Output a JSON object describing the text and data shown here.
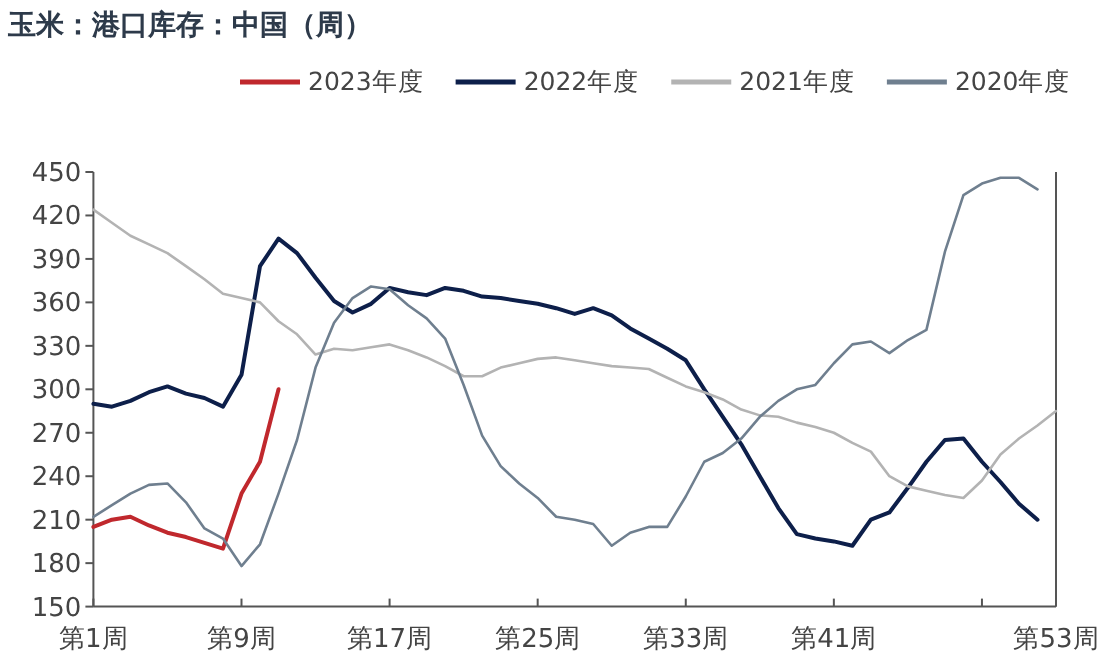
{
  "chart_data": {
    "type": "line",
    "title": "玉米：港口库存：中国（周）",
    "legend": "top",
    "grid": false,
    "marker": "none",
    "line_style": "solid",
    "categories": [
      "第1周",
      null,
      null,
      null,
      null,
      null,
      null,
      null,
      "第9周",
      null,
      null,
      null,
      null,
      null,
      null,
      null,
      "第17周",
      null,
      null,
      null,
      null,
      null,
      null,
      null,
      "第25周",
      null,
      null,
      null,
      null,
      null,
      null,
      null,
      "第33周",
      null,
      null,
      null,
      null,
      null,
      null,
      null,
      "第41周",
      null,
      null,
      null,
      null,
      null,
      null,
      null,
      null,
      null,
      null,
      null,
      "第53周"
    ],
    "ylim": [
      150,
      450
    ],
    "yticks": [
      150,
      180,
      210,
      240,
      270,
      300,
      330,
      360,
      390,
      420,
      450
    ],
    "series": [
      {
        "name": "2023年度",
        "color": "#c0282d",
        "values": [
          205,
          210,
          212,
          206,
          201,
          198,
          194,
          190,
          228,
          250,
          300,
          null,
          null,
          null,
          null,
          null,
          null,
          null,
          null,
          null,
          null,
          null,
          null,
          null,
          null,
          null,
          null,
          null,
          null,
          null,
          null,
          null,
          null,
          null,
          null,
          null,
          null,
          null,
          null,
          null,
          null,
          null,
          null,
          null,
          null,
          null,
          null,
          null,
          null,
          null,
          null,
          null,
          null
        ]
      },
      {
        "name": "2022年度",
        "color": "#0d1f4a",
        "values": [
          290,
          288,
          292,
          298,
          302,
          297,
          294,
          288,
          310,
          385,
          404,
          394,
          377,
          361,
          353,
          359,
          370,
          367,
          365,
          370,
          368,
          364,
          363,
          361,
          359,
          356,
          352,
          356,
          351,
          342,
          335,
          328,
          320,
          300,
          281,
          262,
          240,
          218,
          200,
          197,
          195,
          192,
          210,
          215,
          232,
          250,
          265,
          266,
          250,
          236,
          221,
          210,
          null
        ]
      },
      {
        "name": "2021年度",
        "color": "#b3b3b3",
        "values": [
          424,
          415,
          406,
          400,
          394,
          385,
          376,
          366,
          363,
          360,
          347,
          338,
          324,
          328,
          327,
          329,
          331,
          327,
          322,
          316,
          309,
          309,
          315,
          318,
          321,
          322,
          320,
          318,
          316,
          315,
          314,
          308,
          302,
          298,
          293,
          286,
          282,
          281,
          277,
          274,
          270,
          263,
          257,
          240,
          233,
          230,
          227,
          225,
          237,
          255,
          266,
          275,
          285
        ]
      },
      {
        "name": "2020年度",
        "color": "#6f7f8f",
        "values": [
          212,
          220,
          228,
          234,
          235,
          222,
          204,
          197,
          178,
          193,
          228,
          265,
          315,
          346,
          363,
          371,
          369,
          358,
          349,
          335,
          303,
          268,
          247,
          235,
          225,
          212,
          210,
          207,
          192,
          201,
          205,
          205,
          226,
          250,
          256,
          266,
          281,
          292,
          300,
          303,
          318,
          331,
          333,
          325,
          334,
          341,
          395,
          434,
          442,
          446,
          446,
          438,
          null
        ]
      }
    ]
  }
}
